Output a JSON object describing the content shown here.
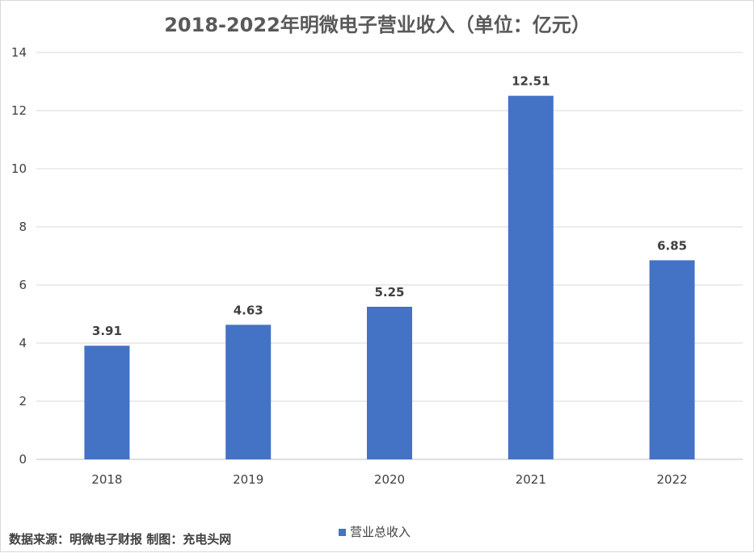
{
  "chart_data": {
    "type": "bar",
    "title": "2018-2022年明微电子营业收入（单位：亿元）",
    "categories": [
      "2018",
      "2019",
      "2020",
      "2021",
      "2022"
    ],
    "series": [
      {
        "name": "营业总收入",
        "values": [
          3.91,
          4.63,
          5.25,
          12.51,
          6.85
        ]
      }
    ],
    "ylim": [
      0,
      14
    ],
    "yticks": [
      0,
      2,
      4,
      6,
      8,
      10,
      12,
      14
    ],
    "grid": true,
    "legend": "bottom",
    "bar_color": "#4472C4",
    "xlabel": "",
    "ylabel": ""
  },
  "footer": {
    "source": "数据来源：明微电子财报  制图：充电头网"
  }
}
